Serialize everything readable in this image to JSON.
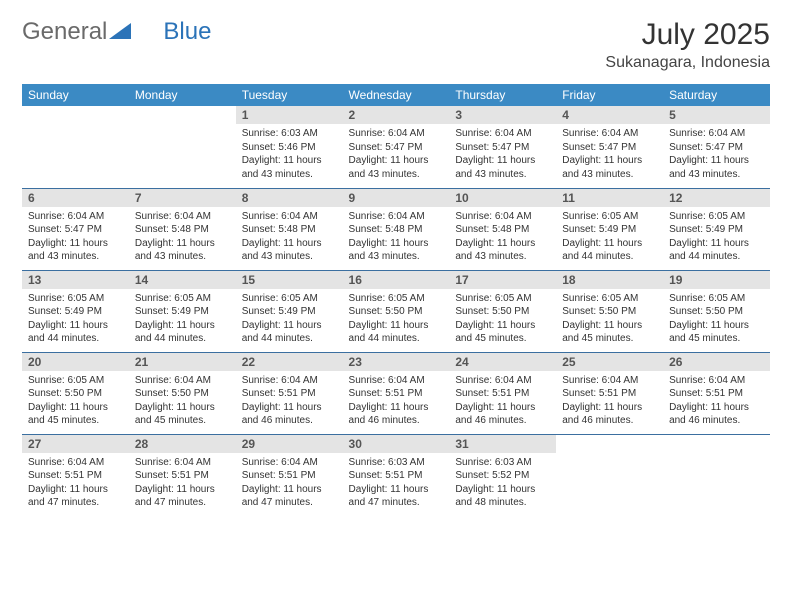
{
  "brand": {
    "part1": "General",
    "part2": "Blue"
  },
  "title": "July 2025",
  "location": "Sukanagara, Indonesia",
  "colors": {
    "header_bg": "#3b8ac4",
    "header_text": "#ffffff",
    "daynum_bg": "#e4e4e4",
    "row_border": "#3b6fa0",
    "brand_gray": "#6a6a6a",
    "brand_blue": "#2b73b8",
    "text": "#333333",
    "background": "#ffffff"
  },
  "weekdays": [
    "Sunday",
    "Monday",
    "Tuesday",
    "Wednesday",
    "Thursday",
    "Friday",
    "Saturday"
  ],
  "weeks": [
    [
      null,
      null,
      {
        "n": "1",
        "sr": "Sunrise: 6:03 AM",
        "ss": "Sunset: 5:46 PM",
        "d1": "Daylight: 11 hours",
        "d2": "and 43 minutes."
      },
      {
        "n": "2",
        "sr": "Sunrise: 6:04 AM",
        "ss": "Sunset: 5:47 PM",
        "d1": "Daylight: 11 hours",
        "d2": "and 43 minutes."
      },
      {
        "n": "3",
        "sr": "Sunrise: 6:04 AM",
        "ss": "Sunset: 5:47 PM",
        "d1": "Daylight: 11 hours",
        "d2": "and 43 minutes."
      },
      {
        "n": "4",
        "sr": "Sunrise: 6:04 AM",
        "ss": "Sunset: 5:47 PM",
        "d1": "Daylight: 11 hours",
        "d2": "and 43 minutes."
      },
      {
        "n": "5",
        "sr": "Sunrise: 6:04 AM",
        "ss": "Sunset: 5:47 PM",
        "d1": "Daylight: 11 hours",
        "d2": "and 43 minutes."
      }
    ],
    [
      {
        "n": "6",
        "sr": "Sunrise: 6:04 AM",
        "ss": "Sunset: 5:47 PM",
        "d1": "Daylight: 11 hours",
        "d2": "and 43 minutes."
      },
      {
        "n": "7",
        "sr": "Sunrise: 6:04 AM",
        "ss": "Sunset: 5:48 PM",
        "d1": "Daylight: 11 hours",
        "d2": "and 43 minutes."
      },
      {
        "n": "8",
        "sr": "Sunrise: 6:04 AM",
        "ss": "Sunset: 5:48 PM",
        "d1": "Daylight: 11 hours",
        "d2": "and 43 minutes."
      },
      {
        "n": "9",
        "sr": "Sunrise: 6:04 AM",
        "ss": "Sunset: 5:48 PM",
        "d1": "Daylight: 11 hours",
        "d2": "and 43 minutes."
      },
      {
        "n": "10",
        "sr": "Sunrise: 6:04 AM",
        "ss": "Sunset: 5:48 PM",
        "d1": "Daylight: 11 hours",
        "d2": "and 43 minutes."
      },
      {
        "n": "11",
        "sr": "Sunrise: 6:05 AM",
        "ss": "Sunset: 5:49 PM",
        "d1": "Daylight: 11 hours",
        "d2": "and 44 minutes."
      },
      {
        "n": "12",
        "sr": "Sunrise: 6:05 AM",
        "ss": "Sunset: 5:49 PM",
        "d1": "Daylight: 11 hours",
        "d2": "and 44 minutes."
      }
    ],
    [
      {
        "n": "13",
        "sr": "Sunrise: 6:05 AM",
        "ss": "Sunset: 5:49 PM",
        "d1": "Daylight: 11 hours",
        "d2": "and 44 minutes."
      },
      {
        "n": "14",
        "sr": "Sunrise: 6:05 AM",
        "ss": "Sunset: 5:49 PM",
        "d1": "Daylight: 11 hours",
        "d2": "and 44 minutes."
      },
      {
        "n": "15",
        "sr": "Sunrise: 6:05 AM",
        "ss": "Sunset: 5:49 PM",
        "d1": "Daylight: 11 hours",
        "d2": "and 44 minutes."
      },
      {
        "n": "16",
        "sr": "Sunrise: 6:05 AM",
        "ss": "Sunset: 5:50 PM",
        "d1": "Daylight: 11 hours",
        "d2": "and 44 minutes."
      },
      {
        "n": "17",
        "sr": "Sunrise: 6:05 AM",
        "ss": "Sunset: 5:50 PM",
        "d1": "Daylight: 11 hours",
        "d2": "and 45 minutes."
      },
      {
        "n": "18",
        "sr": "Sunrise: 6:05 AM",
        "ss": "Sunset: 5:50 PM",
        "d1": "Daylight: 11 hours",
        "d2": "and 45 minutes."
      },
      {
        "n": "19",
        "sr": "Sunrise: 6:05 AM",
        "ss": "Sunset: 5:50 PM",
        "d1": "Daylight: 11 hours",
        "d2": "and 45 minutes."
      }
    ],
    [
      {
        "n": "20",
        "sr": "Sunrise: 6:05 AM",
        "ss": "Sunset: 5:50 PM",
        "d1": "Daylight: 11 hours",
        "d2": "and 45 minutes."
      },
      {
        "n": "21",
        "sr": "Sunrise: 6:04 AM",
        "ss": "Sunset: 5:50 PM",
        "d1": "Daylight: 11 hours",
        "d2": "and 45 minutes."
      },
      {
        "n": "22",
        "sr": "Sunrise: 6:04 AM",
        "ss": "Sunset: 5:51 PM",
        "d1": "Daylight: 11 hours",
        "d2": "and 46 minutes."
      },
      {
        "n": "23",
        "sr": "Sunrise: 6:04 AM",
        "ss": "Sunset: 5:51 PM",
        "d1": "Daylight: 11 hours",
        "d2": "and 46 minutes."
      },
      {
        "n": "24",
        "sr": "Sunrise: 6:04 AM",
        "ss": "Sunset: 5:51 PM",
        "d1": "Daylight: 11 hours",
        "d2": "and 46 minutes."
      },
      {
        "n": "25",
        "sr": "Sunrise: 6:04 AM",
        "ss": "Sunset: 5:51 PM",
        "d1": "Daylight: 11 hours",
        "d2": "and 46 minutes."
      },
      {
        "n": "26",
        "sr": "Sunrise: 6:04 AM",
        "ss": "Sunset: 5:51 PM",
        "d1": "Daylight: 11 hours",
        "d2": "and 46 minutes."
      }
    ],
    [
      {
        "n": "27",
        "sr": "Sunrise: 6:04 AM",
        "ss": "Sunset: 5:51 PM",
        "d1": "Daylight: 11 hours",
        "d2": "and 47 minutes."
      },
      {
        "n": "28",
        "sr": "Sunrise: 6:04 AM",
        "ss": "Sunset: 5:51 PM",
        "d1": "Daylight: 11 hours",
        "d2": "and 47 minutes."
      },
      {
        "n": "29",
        "sr": "Sunrise: 6:04 AM",
        "ss": "Sunset: 5:51 PM",
        "d1": "Daylight: 11 hours",
        "d2": "and 47 minutes."
      },
      {
        "n": "30",
        "sr": "Sunrise: 6:03 AM",
        "ss": "Sunset: 5:51 PM",
        "d1": "Daylight: 11 hours",
        "d2": "and 47 minutes."
      },
      {
        "n": "31",
        "sr": "Sunrise: 6:03 AM",
        "ss": "Sunset: 5:52 PM",
        "d1": "Daylight: 11 hours",
        "d2": "and 48 minutes."
      },
      null,
      null
    ]
  ]
}
